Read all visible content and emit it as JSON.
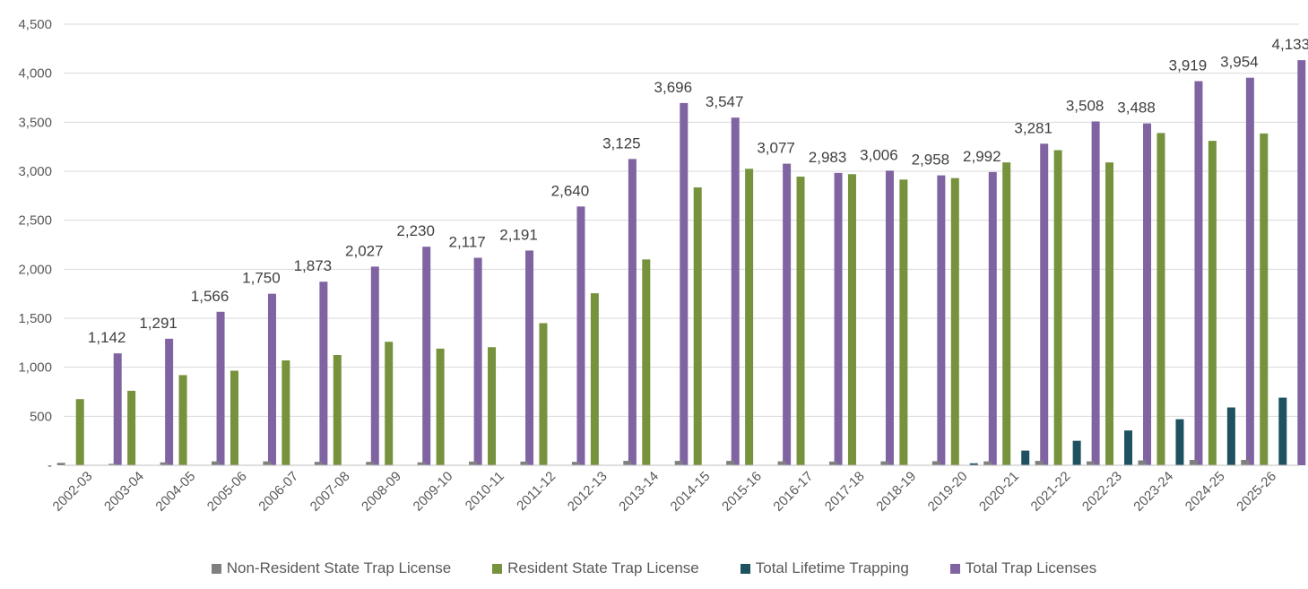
{
  "chart_data": {
    "type": "bar",
    "title": "",
    "xlabel": "",
    "ylabel": "",
    "ylim": [
      0,
      4500
    ],
    "yticks": [
      {
        "value": 0,
        "label": "-"
      },
      {
        "value": 500,
        "label": "500"
      },
      {
        "value": 1000,
        "label": "1,000"
      },
      {
        "value": 1500,
        "label": "1,500"
      },
      {
        "value": 2000,
        "label": "2,000"
      },
      {
        "value": 2500,
        "label": "2,500"
      },
      {
        "value": 3000,
        "label": "3,000"
      },
      {
        "value": 3500,
        "label": "3,500"
      },
      {
        "value": 4000,
        "label": "4,000"
      },
      {
        "value": 4500,
        "label": "4,500"
      }
    ],
    "grid": true,
    "legend_position": "bottom",
    "categories": [
      "2002-03",
      "2003-04",
      "2004-05",
      "2005-06",
      "2006-07",
      "2007-08",
      "2008-09",
      "2009-10",
      "2010-11",
      "2011-12",
      "2012-13",
      "2013-14",
      "2014-15",
      "2015-16",
      "2016-17",
      "2017-18",
      "2018-19",
      "2019-20",
      "2020-21",
      "2021-22",
      "2022-23",
      "2023-24",
      "2024-25",
      "2025-26"
    ],
    "series": [
      {
        "name": "Non-Resident State Trap License",
        "color": "#808080",
        "values": [
          25,
          15,
          30,
          40,
          40,
          35,
          35,
          30,
          38,
          38,
          35,
          45,
          45,
          45,
          40,
          38,
          40,
          42,
          40,
          45,
          40,
          50,
          55,
          55
        ]
      },
      {
        "name": "Resident State Trap License",
        "color": "#76923c",
        "values": [
          675,
          760,
          920,
          965,
          1070,
          1125,
          1260,
          1190,
          1205,
          1450,
          1755,
          2100,
          2835,
          3025,
          2945,
          2970,
          2915,
          2930,
          3090,
          3215,
          3090,
          3390,
          3310,
          3385
        ]
      },
      {
        "name": "Total Lifetime Trapping",
        "color": "#1f5261",
        "values": [
          0,
          0,
          0,
          0,
          0,
          0,
          0,
          0,
          0,
          0,
          0,
          0,
          0,
          0,
          0,
          0,
          0,
          20,
          150,
          250,
          355,
          470,
          590,
          690
        ]
      },
      {
        "name": "Total Trap Licenses",
        "color": "#8064a2",
        "values": [
          1142,
          1291,
          1566,
          1750,
          1873,
          2027,
          2230,
          2117,
          2191,
          2640,
          3125,
          3696,
          3547,
          3077,
          2983,
          3006,
          2958,
          2992,
          3281,
          3508,
          3488,
          3919,
          3954,
          4133
        ],
        "labels": [
          "1,142",
          "1,291",
          "1,566",
          "1,750",
          "1,873",
          "2,027",
          "2,230",
          "2,117",
          "2,191",
          "2,640",
          "3,125",
          "3,696",
          "3,547",
          "3,077",
          "2,983",
          "3,006",
          "2,958",
          "2,992",
          "3,281",
          "3,508",
          "3,488",
          "3,919",
          "3,954",
          "4,133"
        ]
      }
    ]
  }
}
